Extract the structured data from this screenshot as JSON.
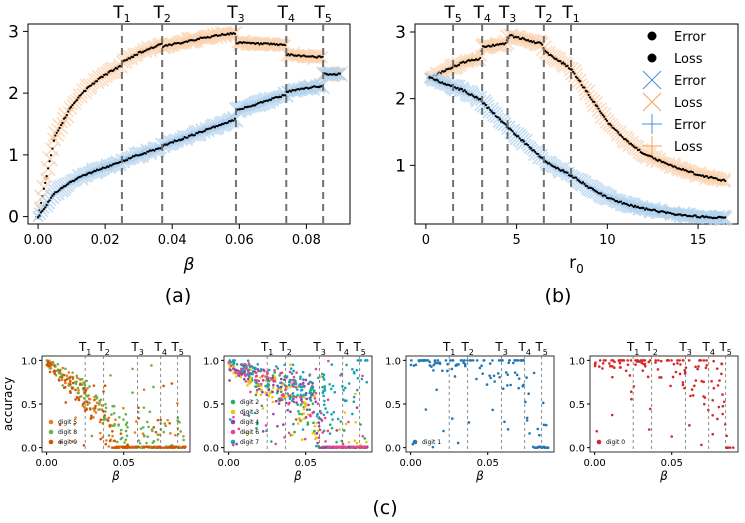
{
  "figure": {
    "panel_labels": [
      "(a)",
      "(b)",
      "(c)"
    ]
  },
  "colors": {
    "error": "#4a90d9",
    "error_band": "#b3d3ee",
    "loss": "#f4a460",
    "loss_band": "#fbd3b0",
    "line": "#000000",
    "vline": "#707070",
    "digit1": "#1f77b4",
    "digit0": "#d62728"
  },
  "chart_data": [
    {
      "id": "a",
      "type": "line",
      "xlabel": "β",
      "ylabel": "",
      "xlim": [
        -0.003,
        0.093
      ],
      "ylim": [
        -0.12,
        3.12
      ],
      "xticks": [
        0.0,
        0.02,
        0.04,
        0.06,
        0.08
      ],
      "xtick_labels": [
        "0.00",
        "0.02",
        "0.04",
        "0.06",
        "0.08"
      ],
      "yticks": [
        0,
        1,
        2,
        3
      ],
      "ytick_labels": [
        "0",
        "1",
        "2",
        "3"
      ],
      "transitions": [
        {
          "label": "T",
          "sub": "1",
          "x": 0.025
        },
        {
          "label": "T",
          "sub": "2",
          "x": 0.037
        },
        {
          "label": "T",
          "sub": "3",
          "x": 0.059
        },
        {
          "label": "T",
          "sub": "4",
          "x": 0.074
        },
        {
          "label": "T",
          "sub": "5",
          "x": 0.085
        }
      ],
      "series": [
        {
          "name": "Loss",
          "x": [
            0.0,
            0.005,
            0.01,
            0.015,
            0.02,
            0.025,
            0.0251,
            0.03,
            0.037,
            0.0371,
            0.045,
            0.055,
            0.059,
            0.0591,
            0.065,
            0.074,
            0.0741,
            0.08,
            0.085,
            0.0851,
            0.09
          ],
          "values": [
            0.0,
            1.3,
            1.8,
            2.1,
            2.3,
            2.45,
            2.5,
            2.65,
            2.8,
            2.75,
            2.85,
            2.95,
            2.97,
            2.82,
            2.8,
            2.78,
            2.62,
            2.6,
            2.58,
            2.31,
            2.31
          ]
        },
        {
          "name": "Error",
          "x": [
            0.0,
            0.005,
            0.01,
            0.015,
            0.02,
            0.025,
            0.0251,
            0.03,
            0.037,
            0.0371,
            0.045,
            0.055,
            0.059,
            0.0591,
            0.065,
            0.074,
            0.0741,
            0.08,
            0.085,
            0.0851,
            0.09
          ],
          "values": [
            0.0,
            0.38,
            0.57,
            0.7,
            0.8,
            0.88,
            0.9,
            1.0,
            1.12,
            1.15,
            1.3,
            1.5,
            1.58,
            1.72,
            1.82,
            1.98,
            2.02,
            2.08,
            2.12,
            2.31,
            2.31
          ]
        }
      ]
    },
    {
      "id": "b",
      "type": "line",
      "xlabel": "r",
      "xlabel_sub": "0",
      "ylabel": "",
      "xlim": [
        -0.6,
        17.2
      ],
      "ylim": [
        0.12,
        3.12
      ],
      "xticks": [
        0,
        5,
        10,
        15
      ],
      "xtick_labels": [
        "0",
        "5",
        "10",
        "15"
      ],
      "yticks": [
        1,
        2,
        3
      ],
      "ytick_labels": [
        "1",
        "2",
        "3"
      ],
      "transitions": [
        {
          "label": "T",
          "sub": "5",
          "x": 1.5
        },
        {
          "label": "T",
          "sub": "4",
          "x": 3.1
        },
        {
          "label": "T",
          "sub": "3",
          "x": 4.5
        },
        {
          "label": "T",
          "sub": "2",
          "x": 6.5
        },
        {
          "label": "T",
          "sub": "1",
          "x": 8.0
        }
      ],
      "series": [
        {
          "name": "Loss",
          "x": [
            0.2,
            2.1,
            3.0,
            3.1,
            4.4,
            4.6,
            6.4,
            6.6,
            8.0,
            9.0,
            10.0,
            11.0,
            12.0,
            13.0,
            14.0,
            15.0,
            16.5
          ],
          "values": [
            2.31,
            2.55,
            2.6,
            2.78,
            2.82,
            2.95,
            2.82,
            2.7,
            2.45,
            2.05,
            1.65,
            1.38,
            1.18,
            1.05,
            0.95,
            0.86,
            0.77
          ]
        },
        {
          "name": "Error",
          "x": [
            0.2,
            2.1,
            3.0,
            3.1,
            4.4,
            4.6,
            6.4,
            6.6,
            8.0,
            9.0,
            10.0,
            11.0,
            12.0,
            13.0,
            14.0,
            15.0,
            16.5
          ],
          "values": [
            2.31,
            2.12,
            1.98,
            1.95,
            1.6,
            1.55,
            1.1,
            1.05,
            0.85,
            0.67,
            0.52,
            0.42,
            0.35,
            0.3,
            0.26,
            0.23,
            0.21
          ]
        }
      ],
      "legend": {
        "position": "upper right",
        "entries": [
          {
            "marker": "dot",
            "label": "Error"
          },
          {
            "marker": "dot",
            "label": "Loss"
          },
          {
            "marker": "x",
            "label": "Error"
          },
          {
            "marker": "x",
            "label": "Loss"
          },
          {
            "marker": "plus",
            "label": "Error"
          },
          {
            "marker": "plus",
            "label": "Loss"
          }
        ]
      }
    },
    {
      "id": "c1",
      "type": "scatter",
      "xlabel": "β",
      "ylabel": "accuracy",
      "xlim": [
        -0.003,
        0.093
      ],
      "ylim": [
        -0.05,
        1.05
      ],
      "xticks": [
        0.0,
        0.05
      ],
      "xtick_labels": [
        "0.00",
        "0.05"
      ],
      "yticks": [
        0.0,
        0.5,
        1.0
      ],
      "ytick_labels": [
        "0.0",
        "0.5",
        "1.0"
      ],
      "transitions": [
        {
          "label": "T",
          "sub": "1",
          "x": 0.025
        },
        {
          "label": "T",
          "sub": "2",
          "x": 0.037
        },
        {
          "label": "T",
          "sub": "3",
          "x": 0.059
        },
        {
          "label": "T",
          "sub": "4",
          "x": 0.074
        },
        {
          "label": "T",
          "sub": "5",
          "x": 0.085
        }
      ],
      "series": [
        {
          "name": "digit 5",
          "color": "#e67e22",
          "trend": [
            [
              0,
              0.97
            ],
            [
              0.02,
              0.7
            ],
            [
              0.035,
              0.35
            ],
            [
              0.045,
              0.1
            ],
            [
              0.09,
              0.0
            ]
          ]
        },
        {
          "name": "digit 8",
          "color": "#6ab04c",
          "trend": [
            [
              0,
              0.96
            ],
            [
              0.02,
              0.75
            ],
            [
              0.035,
              0.4
            ],
            [
              0.05,
              0.15
            ],
            [
              0.09,
              0.02
            ]
          ]
        },
        {
          "name": "digit 9",
          "color": "#d35400",
          "trend": [
            [
              0,
              0.95
            ],
            [
              0.02,
              0.65
            ],
            [
              0.035,
              0.3
            ],
            [
              0.045,
              0.08
            ],
            [
              0.09,
              0.0
            ]
          ]
        }
      ],
      "legend": {
        "position": "lower left"
      }
    },
    {
      "id": "c2",
      "type": "scatter",
      "xlabel": "β",
      "ylabel": "",
      "xlim": [
        -0.003,
        0.093
      ],
      "ylim": [
        -0.05,
        1.05
      ],
      "xticks": [
        0.0,
        0.05
      ],
      "xtick_labels": [
        "0.00",
        "0.05"
      ],
      "yticks": [
        0.0,
        0.5,
        1.0
      ],
      "ytick_labels": [
        "0.0",
        "0.5",
        "1.0"
      ],
      "transitions": [
        {
          "label": "T",
          "sub": "1",
          "x": 0.025
        },
        {
          "label": "T",
          "sub": "2",
          "x": 0.037
        },
        {
          "label": "T",
          "sub": "3",
          "x": 0.059
        },
        {
          "label": "T",
          "sub": "4",
          "x": 0.074
        },
        {
          "label": "T",
          "sub": "5",
          "x": 0.085
        }
      ],
      "series": [
        {
          "name": "digit 2",
          "color": "#27ae60",
          "trend": [
            [
              0,
              0.95
            ],
            [
              0.03,
              0.7
            ],
            [
              0.055,
              0.45
            ],
            [
              0.06,
              0.02
            ],
            [
              0.09,
              0.0
            ]
          ]
        },
        {
          "name": "digit 3",
          "color": "#f1c40f",
          "trend": [
            [
              0,
              0.92
            ],
            [
              0.03,
              0.65
            ],
            [
              0.055,
              0.4
            ],
            [
              0.06,
              0.02
            ],
            [
              0.09,
              0.0
            ]
          ]
        },
        {
          "name": "digit 4",
          "color": "#8e44ad",
          "trend": [
            [
              0,
              0.95
            ],
            [
              0.03,
              0.7
            ],
            [
              0.055,
              0.5
            ],
            [
              0.06,
              0.02
            ],
            [
              0.09,
              0.0
            ]
          ]
        },
        {
          "name": "digit 6",
          "color": "#e84393",
          "trend": [
            [
              0,
              0.96
            ],
            [
              0.03,
              0.75
            ],
            [
              0.055,
              0.55
            ],
            [
              0.065,
              0.02
            ],
            [
              0.09,
              0.0
            ]
          ]
        },
        {
          "name": "digit 7",
          "color": "#17a2b8",
          "trend": [
            [
              0,
              0.97
            ],
            [
              0.03,
              0.8
            ],
            [
              0.06,
              0.6
            ],
            [
              0.08,
              0.7
            ],
            [
              0.085,
              1.0
            ]
          ]
        }
      ],
      "legend": {
        "position": "lower left"
      }
    },
    {
      "id": "c3",
      "type": "scatter",
      "xlabel": "β",
      "ylabel": "",
      "xlim": [
        -0.003,
        0.093
      ],
      "ylim": [
        -0.05,
        1.05
      ],
      "xticks": [
        0.0,
        0.05
      ],
      "xtick_labels": [
        "0.00",
        "0.05"
      ],
      "yticks": [
        0.0,
        0.5,
        1.0
      ],
      "ytick_labels": [
        "0.0",
        "0.5",
        "1.0"
      ],
      "transitions": [
        {
          "label": "T",
          "sub": "1",
          "x": 0.025
        },
        {
          "label": "T",
          "sub": "2",
          "x": 0.037
        },
        {
          "label": "T",
          "sub": "3",
          "x": 0.059
        },
        {
          "label": "T",
          "sub": "4",
          "x": 0.074
        },
        {
          "label": "T",
          "sub": "5",
          "x": 0.085
        }
      ],
      "series": [
        {
          "name": "digit 1",
          "color": "#1f77b4",
          "trend": [
            [
              0,
              0.99
            ],
            [
              0.074,
              0.99
            ],
            [
              0.076,
              0.5
            ],
            [
              0.078,
              0.02
            ],
            [
              0.09,
              0.0
            ]
          ]
        }
      ],
      "legend": {
        "position": "lower left"
      }
    },
    {
      "id": "c4",
      "type": "scatter",
      "xlabel": "β",
      "ylabel": "",
      "xlim": [
        -0.003,
        0.093
      ],
      "ylim": [
        -0.05,
        1.05
      ],
      "xticks": [
        0.0,
        0.05
      ],
      "xtick_labels": [
        "0.00",
        "0.05"
      ],
      "yticks": [
        0.0,
        0.5,
        1.0
      ],
      "ytick_labels": [
        "0.0",
        "0.5",
        "1.0"
      ],
      "transitions": [
        {
          "label": "T",
          "sub": "1",
          "x": 0.025
        },
        {
          "label": "T",
          "sub": "2",
          "x": 0.037
        },
        {
          "label": "T",
          "sub": "3",
          "x": 0.059
        },
        {
          "label": "T",
          "sub": "4",
          "x": 0.074
        },
        {
          "label": "T",
          "sub": "5",
          "x": 0.085
        }
      ],
      "series": [
        {
          "name": "digit 0",
          "color": "#d62728",
          "trend": [
            [
              0,
              0.98
            ],
            [
              0.05,
              0.95
            ],
            [
              0.07,
              0.8
            ],
            [
              0.085,
              0.6
            ],
            [
              0.0851,
              0.0
            ],
            [
              0.09,
              0.0
            ]
          ]
        }
      ],
      "legend": {
        "position": "lower left"
      }
    }
  ]
}
